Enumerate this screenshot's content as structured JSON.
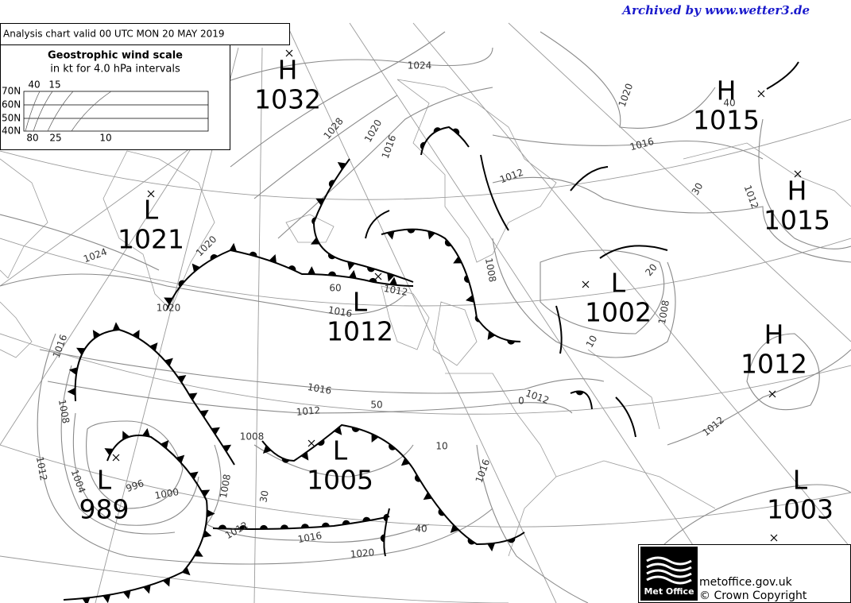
{
  "header": {
    "archive": "Archived by www.wetter3.de",
    "title": "Analysis chart  valid 00 UTC MON 20  MAY 2019"
  },
  "wind_scale": {
    "title": "Geostrophic wind scale",
    "subtitle": "in kt for 4.0 hPa intervals",
    "latitudes": [
      "70N",
      "60N",
      "50N",
      "40N"
    ],
    "top_speeds": [
      "40",
      "15"
    ],
    "bottom_speeds": [
      "80",
      "25",
      "10"
    ]
  },
  "pressure_centers": [
    {
      "kind": "H",
      "value": "1032"
    },
    {
      "kind": "L",
      "value": "1021"
    },
    {
      "kind": "H",
      "value": "1015"
    },
    {
      "kind": "H",
      "value": "1015"
    },
    {
      "kind": "L",
      "value": "1012"
    },
    {
      "kind": "L",
      "value": "1002"
    },
    {
      "kind": "H",
      "value": "1012"
    },
    {
      "kind": "L",
      "value": "1005"
    },
    {
      "kind": "L",
      "value": "989"
    },
    {
      "kind": "L",
      "value": "1003"
    }
  ],
  "isobar_labels": [
    "1024",
    "1028",
    "1020",
    "1016",
    "1020",
    "1016",
    "1012",
    "1012",
    "1024",
    "1020",
    "1016",
    "1012",
    "1008",
    "1008",
    "1016",
    "1012",
    "1012",
    "1016",
    "1008",
    "1012",
    "1008",
    "1008",
    "1004",
    "996",
    "1000",
    "1012",
    "1016",
    "1020",
    "1016",
    "1012",
    "1020"
  ],
  "latitude_labels": [
    "60",
    "50",
    "40",
    "30",
    "20",
    "10",
    "10",
    "0",
    "30",
    "40"
  ],
  "footer": {
    "logo": "Met Office",
    "site": "metoffice.gov.uk",
    "copyright": "© Crown Copyright"
  }
}
